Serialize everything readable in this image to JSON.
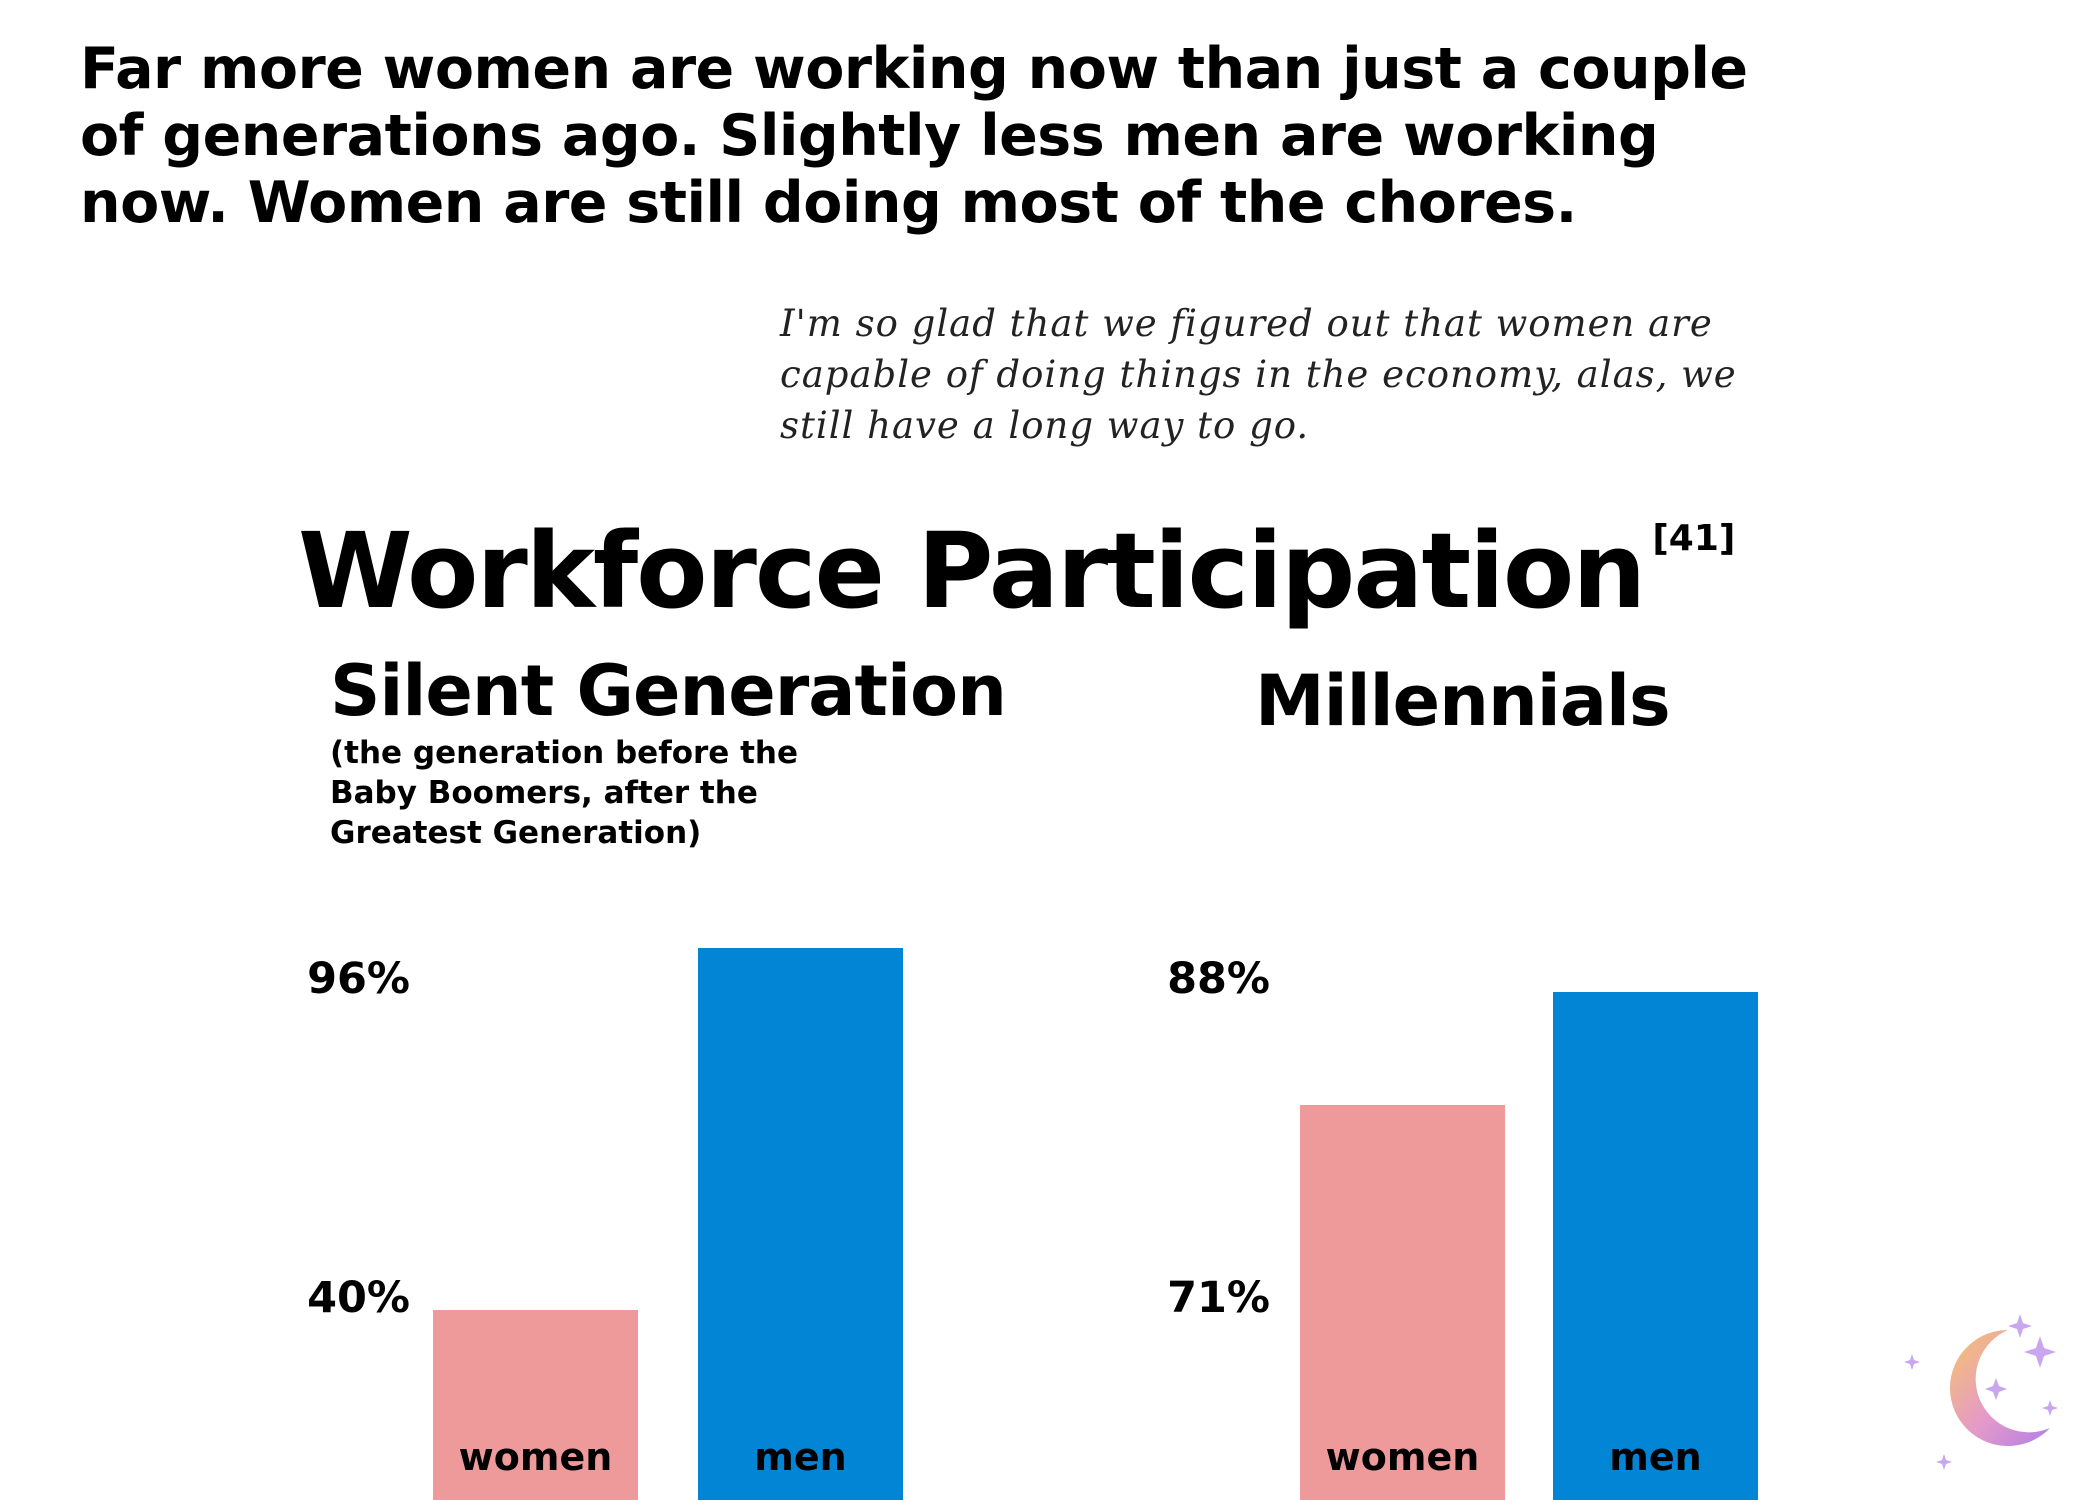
{
  "page": {
    "headline": "Far more women are working now than just a couple of generations ago. Slightly less men are working now. Women are still doing most of the chores.",
    "aside": "I'm so glad that we figured out that women are capable of doing things in the economy, alas, we still have a long way to go.",
    "title": "Workforce Participation",
    "citation": "[41]"
  },
  "colors": {
    "women": "#ef9a9a",
    "men": "#0385d5"
  },
  "chart_data": [
    {
      "type": "bar",
      "title": "Silent Generation",
      "subtitle": "(the generation before the Baby Boomers, after the Greatest Generation)",
      "categories": [
        "women",
        "men"
      ],
      "values": [
        40,
        96
      ],
      "value_labels": [
        "40%",
        "96%"
      ],
      "grid": false,
      "legend": "none"
    },
    {
      "type": "bar",
      "title": "Millennials",
      "subtitle": "",
      "categories": [
        "women",
        "men"
      ],
      "values": [
        71,
        88
      ],
      "value_labels": [
        "71%",
        "88%"
      ],
      "grid": false,
      "legend": "none"
    }
  ],
  "icons": {
    "logo": "moon-stars-icon"
  }
}
